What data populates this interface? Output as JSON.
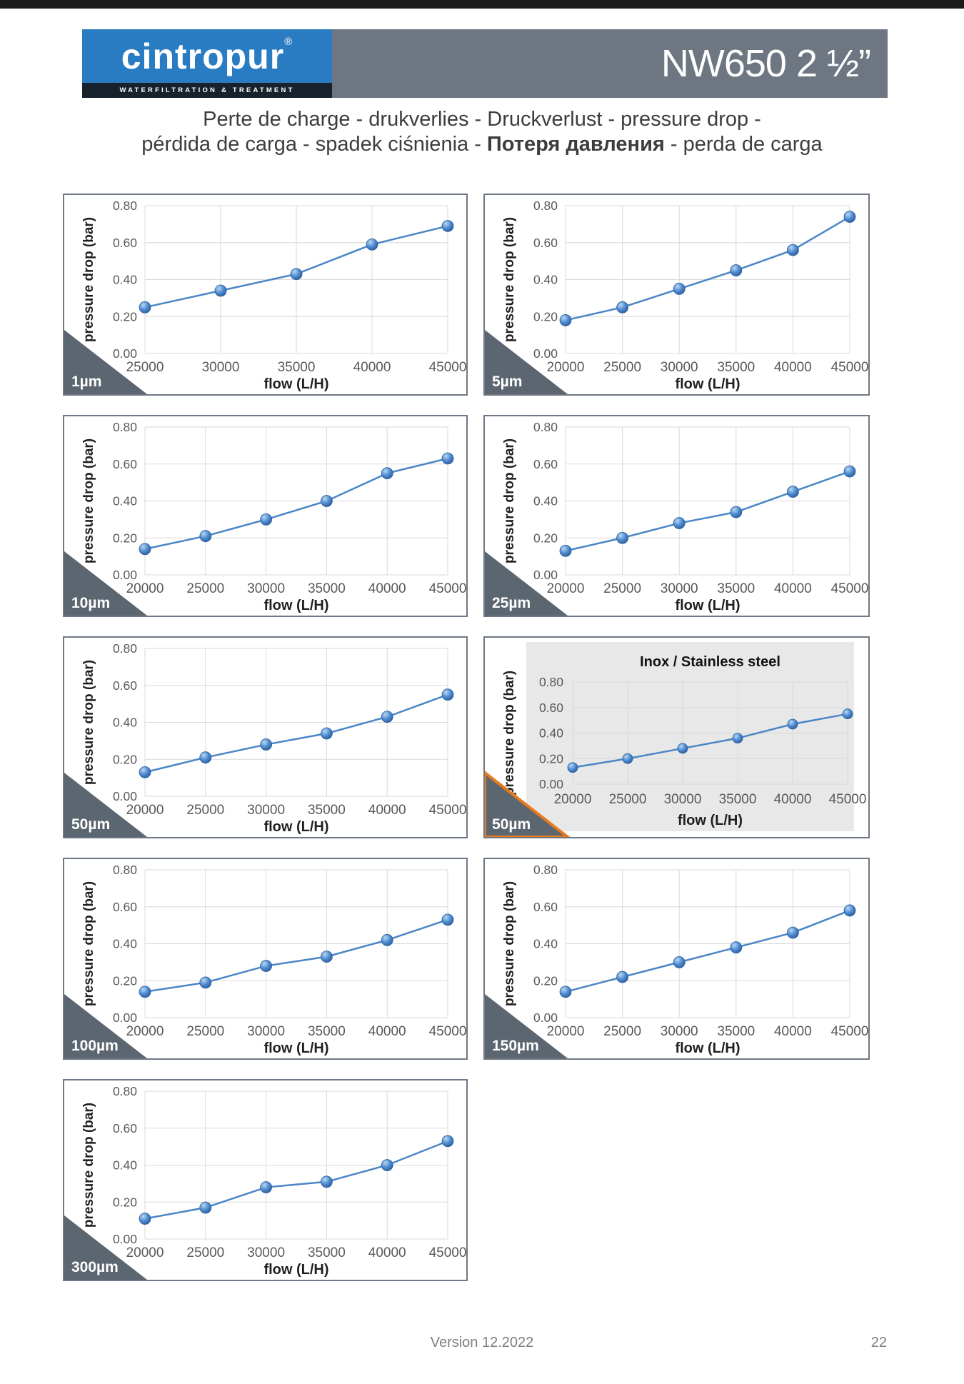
{
  "header": {
    "logo_text": "cintropur",
    "logo_reg": "®",
    "logo_subtitle": "WATERFILTRATION & TREATMENT",
    "model": "NW650 2 ½”"
  },
  "title": {
    "line1": "Perte de charge - drukverlies - Druckverlust - pressure drop -",
    "line2_pre": "pérdida de carga - spadek ciśnienia - ",
    "line2_bold": "Потеря давления",
    "line2_post": " - perda de carga"
  },
  "footer": {
    "version": "Version 12.2022",
    "page_number": "22"
  },
  "colors": {
    "top_bar": "#1c1c1c",
    "logo_blue": "#2a7cc2",
    "logo_strip": "#17222d",
    "header_gray": "#6d7681",
    "box_border": "#6e7884",
    "grid": "#d9d9d9",
    "tick_text": "#595959",
    "axis_text": "#1f1f1f",
    "line": "#4a86c6",
    "marker_highlight": "#b8d7f2",
    "marker_mid": "#4e8bd0",
    "marker_edge": "#2c5f9e",
    "triangle": "#5c6670",
    "inox_panel": "#e8e8e8",
    "orange": "#e87a1e",
    "title_text": "#3d3d3d",
    "footer_text": "#7f7f7f"
  },
  "chart_data": [
    {
      "type": "line",
      "label": "1µm",
      "x": [
        25000,
        30000,
        35000,
        40000,
        45000
      ],
      "y": [
        0.25,
        0.34,
        0.43,
        0.59,
        0.69
      ],
      "xlabel": "flow (L/H)",
      "ylabel": "pressure drop (bar)",
      "ylim": [
        0,
        0.8
      ],
      "yticks": [
        "0.00",
        "0.20",
        "0.40",
        "0.60",
        "0.80"
      ],
      "grid": true
    },
    {
      "type": "line",
      "label": "5µm",
      "x": [
        20000,
        25000,
        30000,
        35000,
        40000,
        45000
      ],
      "y": [
        0.18,
        0.25,
        0.35,
        0.45,
        0.56,
        0.74
      ],
      "xlabel": "flow (L/H)",
      "ylabel": "pressure drop (bar)",
      "ylim": [
        0,
        0.8
      ],
      "yticks": [
        "0.00",
        "0.20",
        "0.40",
        "0.60",
        "0.80"
      ],
      "grid": true
    },
    {
      "type": "line",
      "label": "10µm",
      "x": [
        20000,
        25000,
        30000,
        35000,
        40000,
        45000
      ],
      "y": [
        0.14,
        0.21,
        0.3,
        0.4,
        0.55,
        0.63
      ],
      "xlabel": "flow (L/H)",
      "ylabel": "pressure drop (bar)",
      "ylim": [
        0,
        0.8
      ],
      "yticks": [
        "0.00",
        "0.20",
        "0.40",
        "0.60",
        "0.80"
      ],
      "grid": true
    },
    {
      "type": "line",
      "label": "25µm",
      "x": [
        20000,
        25000,
        30000,
        35000,
        40000,
        45000
      ],
      "y": [
        0.13,
        0.2,
        0.28,
        0.34,
        0.45,
        0.56
      ],
      "xlabel": "flow (L/H)",
      "ylabel": "pressure drop (bar)",
      "ylim": [
        0,
        0.8
      ],
      "yticks": [
        "0.00",
        "0.20",
        "0.40",
        "0.60",
        "0.80"
      ],
      "grid": true
    },
    {
      "type": "line",
      "label": "50µm",
      "x": [
        20000,
        25000,
        30000,
        35000,
        40000,
        45000
      ],
      "y": [
        0.13,
        0.21,
        0.28,
        0.34,
        0.43,
        0.55
      ],
      "xlabel": "flow (L/H)",
      "ylabel": "pressure drop (bar)",
      "ylim": [
        0,
        0.8
      ],
      "yticks": [
        "0.00",
        "0.20",
        "0.40",
        "0.60",
        "0.80"
      ],
      "grid": true
    },
    {
      "type": "line",
      "label": "50µm",
      "variant": "inox",
      "title": "Inox / Stainless steel",
      "x": [
        20000,
        25000,
        30000,
        35000,
        40000,
        45000
      ],
      "y": [
        0.13,
        0.2,
        0.28,
        0.36,
        0.47,
        0.55
      ],
      "xlabel": "flow (L/H)",
      "ylabel": "pressure drop (bar)",
      "ylim": [
        0,
        0.8
      ],
      "yticks": [
        "0.00",
        "0.20",
        "0.40",
        "0.60",
        "0.80"
      ],
      "grid": true
    },
    {
      "type": "line",
      "label": "100µm",
      "x": [
        20000,
        25000,
        30000,
        35000,
        40000,
        45000
      ],
      "y": [
        0.14,
        0.19,
        0.28,
        0.33,
        0.42,
        0.53
      ],
      "xlabel": "flow (L/H)",
      "ylabel": "pressure drop (bar)",
      "ylim": [
        0,
        0.8
      ],
      "yticks": [
        "0.00",
        "0.20",
        "0.40",
        "0.60",
        "0.80"
      ],
      "grid": true
    },
    {
      "type": "line",
      "label": "150µm",
      "x": [
        20000,
        25000,
        30000,
        35000,
        40000,
        45000
      ],
      "y": [
        0.14,
        0.22,
        0.3,
        0.38,
        0.46,
        0.58
      ],
      "xlabel": "flow (L/H)",
      "ylabel": "pressure drop (bar)",
      "ylim": [
        0,
        0.8
      ],
      "yticks": [
        "0.00",
        "0.20",
        "0.40",
        "0.60",
        "0.80"
      ],
      "grid": true
    },
    {
      "type": "line",
      "label": "300µm",
      "x": [
        20000,
        25000,
        30000,
        35000,
        40000,
        45000
      ],
      "y": [
        0.11,
        0.17,
        0.28,
        0.31,
        0.4,
        0.53
      ],
      "xlabel": "flow (L/H)",
      "ylabel": "pressure drop (bar)",
      "ylim": [
        0,
        0.8
      ],
      "yticks": [
        "0.00",
        "0.20",
        "0.40",
        "0.60",
        "0.80"
      ],
      "grid": true
    }
  ]
}
